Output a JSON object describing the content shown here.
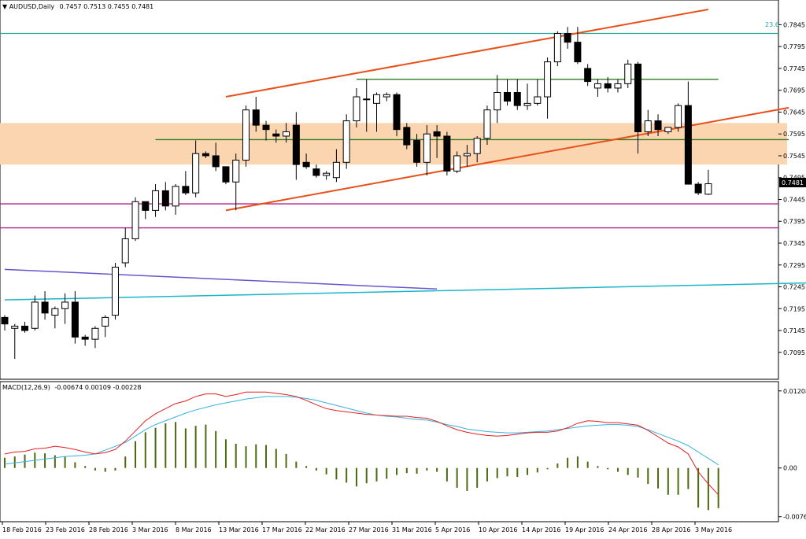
{
  "price_header": {
    "arrow": "▼",
    "symbol_tf": "AUDUSD,Daily",
    "ohlc": "0.7457 0.7513 0.7455 0.7481"
  },
  "macd_header": {
    "label": "MACD(12,26,9)",
    "values": "-0.00674 0.00109 -0.00228"
  },
  "fib_label": "23.6",
  "current_price": "0.7481",
  "colors": {
    "up_candle": "#ffffff",
    "down_candle": "#000000",
    "channel": "#e8501a",
    "zone": "#fbd5b0",
    "resistance": "#2e7d20",
    "support": "#b0208a",
    "fib": "#2aa59a",
    "purple_trend": "#6655cc",
    "cyan_trend": "#1ab5c8",
    "macd_hist": "#4a6a10",
    "macd_main": "#e02020",
    "macd_signal": "#39b0e0"
  },
  "chart_data": [
    {
      "type": "candlestick",
      "ylim": [
        0.7055,
        0.788
      ],
      "y_ticks": [
        "0.7845",
        "0.7795",
        "0.7745",
        "0.7695",
        "0.7645",
        "0.7595",
        "0.7545",
        "0.7495",
        "0.7445",
        "0.7395",
        "0.7345",
        "0.7295",
        "0.7245",
        "0.7195",
        "0.7145",
        "0.7095"
      ],
      "x_ticks": [
        "18 Feb 2016",
        "23 Feb 2016",
        "28 Feb 2016",
        "3 Mar 2016",
        "8 Mar 2016",
        "13 Mar 2016",
        "17 Mar 2016",
        "22 Mar 2016",
        "27 Mar 2016",
        "31 Mar 2016",
        "5 Apr 2016",
        "10 Apr 2016",
        "14 Apr 2016",
        "19 Apr 2016",
        "24 Apr 2016",
        "28 Apr 2016",
        "3 May 2016"
      ],
      "candles": [
        {
          "o": 0.7175,
          "h": 0.718,
          "l": 0.7145,
          "c": 0.716
        },
        {
          "o": 0.715,
          "h": 0.716,
          "l": 0.708,
          "c": 0.7155
        },
        {
          "o": 0.7155,
          "h": 0.7165,
          "l": 0.714,
          "c": 0.7145
        },
        {
          "o": 0.715,
          "h": 0.7225,
          "l": 0.7145,
          "c": 0.721
        },
        {
          "o": 0.721,
          "h": 0.7235,
          "l": 0.717,
          "c": 0.7185
        },
        {
          "o": 0.718,
          "h": 0.72,
          "l": 0.715,
          "c": 0.7195
        },
        {
          "o": 0.7195,
          "h": 0.723,
          "l": 0.716,
          "c": 0.721
        },
        {
          "o": 0.721,
          "h": 0.7235,
          "l": 0.7115,
          "c": 0.713
        },
        {
          "o": 0.713,
          "h": 0.7135,
          "l": 0.711,
          "c": 0.7125
        },
        {
          "o": 0.7125,
          "h": 0.7155,
          "l": 0.7105,
          "c": 0.715
        },
        {
          "o": 0.7155,
          "h": 0.718,
          "l": 0.713,
          "c": 0.7175
        },
        {
          "o": 0.718,
          "h": 0.73,
          "l": 0.717,
          "c": 0.729
        },
        {
          "o": 0.73,
          "h": 0.738,
          "l": 0.729,
          "c": 0.7355
        },
        {
          "o": 0.7355,
          "h": 0.745,
          "l": 0.735,
          "c": 0.744
        },
        {
          "o": 0.744,
          "h": 0.744,
          "l": 0.74,
          "c": 0.742
        },
        {
          "o": 0.742,
          "h": 0.748,
          "l": 0.7405,
          "c": 0.7465
        },
        {
          "o": 0.7465,
          "h": 0.7485,
          "l": 0.742,
          "c": 0.743
        },
        {
          "o": 0.743,
          "h": 0.748,
          "l": 0.741,
          "c": 0.7475
        },
        {
          "o": 0.7475,
          "h": 0.751,
          "l": 0.7455,
          "c": 0.746
        },
        {
          "o": 0.746,
          "h": 0.758,
          "l": 0.745,
          "c": 0.755
        },
        {
          "o": 0.755,
          "h": 0.7555,
          "l": 0.754,
          "c": 0.7545
        },
        {
          "o": 0.7545,
          "h": 0.7575,
          "l": 0.751,
          "c": 0.752
        },
        {
          "o": 0.752,
          "h": 0.752,
          "l": 0.748,
          "c": 0.7485
        },
        {
          "o": 0.7485,
          "h": 0.755,
          "l": 0.742,
          "c": 0.7535
        },
        {
          "o": 0.7535,
          "h": 0.766,
          "l": 0.752,
          "c": 0.765
        },
        {
          "o": 0.765,
          "h": 0.768,
          "l": 0.76,
          "c": 0.7615
        },
        {
          "o": 0.7615,
          "h": 0.7625,
          "l": 0.758,
          "c": 0.7605
        },
        {
          "o": 0.7595,
          "h": 0.7605,
          "l": 0.7575,
          "c": 0.759
        },
        {
          "o": 0.759,
          "h": 0.762,
          "l": 0.7575,
          "c": 0.76
        },
        {
          "o": 0.7615,
          "h": 0.7645,
          "l": 0.749,
          "c": 0.7525
        },
        {
          "o": 0.753,
          "h": 0.755,
          "l": 0.7515,
          "c": 0.752
        },
        {
          "o": 0.7515,
          "h": 0.7525,
          "l": 0.7495,
          "c": 0.75
        },
        {
          "o": 0.75,
          "h": 0.751,
          "l": 0.749,
          "c": 0.7505
        },
        {
          "o": 0.7495,
          "h": 0.756,
          "l": 0.7485,
          "c": 0.753
        },
        {
          "o": 0.753,
          "h": 0.764,
          "l": 0.7515,
          "c": 0.7625
        },
        {
          "o": 0.7625,
          "h": 0.77,
          "l": 0.761,
          "c": 0.768
        },
        {
          "o": 0.7675,
          "h": 0.772,
          "l": 0.76,
          "c": 0.7675
        },
        {
          "o": 0.7665,
          "h": 0.769,
          "l": 0.76,
          "c": 0.7685
        },
        {
          "o": 0.768,
          "h": 0.769,
          "l": 0.767,
          "c": 0.7685
        },
        {
          "o": 0.7685,
          "h": 0.769,
          "l": 0.759,
          "c": 0.7605
        },
        {
          "o": 0.761,
          "h": 0.762,
          "l": 0.756,
          "c": 0.757
        },
        {
          "o": 0.758,
          "h": 0.7595,
          "l": 0.752,
          "c": 0.753
        },
        {
          "o": 0.753,
          "h": 0.7615,
          "l": 0.75,
          "c": 0.7595
        },
        {
          "o": 0.76,
          "h": 0.7615,
          "l": 0.754,
          "c": 0.759
        },
        {
          "o": 0.759,
          "h": 0.76,
          "l": 0.75,
          "c": 0.751
        },
        {
          "o": 0.751,
          "h": 0.7555,
          "l": 0.7505,
          "c": 0.7545
        },
        {
          "o": 0.7545,
          "h": 0.757,
          "l": 0.752,
          "c": 0.755
        },
        {
          "o": 0.755,
          "h": 0.759,
          "l": 0.753,
          "c": 0.7585
        },
        {
          "o": 0.7585,
          "h": 0.766,
          "l": 0.757,
          "c": 0.765
        },
        {
          "o": 0.765,
          "h": 0.773,
          "l": 0.762,
          "c": 0.769
        },
        {
          "o": 0.769,
          "h": 0.772,
          "l": 0.766,
          "c": 0.767
        },
        {
          "o": 0.769,
          "h": 0.772,
          "l": 0.765,
          "c": 0.766
        },
        {
          "o": 0.766,
          "h": 0.771,
          "l": 0.765,
          "c": 0.7665
        },
        {
          "o": 0.7665,
          "h": 0.772,
          "l": 0.766,
          "c": 0.768
        },
        {
          "o": 0.768,
          "h": 0.777,
          "l": 0.763,
          "c": 0.776
        },
        {
          "o": 0.776,
          "h": 0.783,
          "l": 0.775,
          "c": 0.7825
        },
        {
          "o": 0.7825,
          "h": 0.784,
          "l": 0.779,
          "c": 0.7805
        },
        {
          "o": 0.7805,
          "h": 0.784,
          "l": 0.7755,
          "c": 0.776
        },
        {
          "o": 0.7745,
          "h": 0.7755,
          "l": 0.7705,
          "c": 0.7715
        },
        {
          "o": 0.77,
          "h": 0.772,
          "l": 0.768,
          "c": 0.771
        },
        {
          "o": 0.771,
          "h": 0.7725,
          "l": 0.769,
          "c": 0.77
        },
        {
          "o": 0.77,
          "h": 0.772,
          "l": 0.769,
          "c": 0.771
        },
        {
          "o": 0.771,
          "h": 0.7765,
          "l": 0.77,
          "c": 0.7755
        },
        {
          "o": 0.7755,
          "h": 0.776,
          "l": 0.755,
          "c": 0.76
        },
        {
          "o": 0.76,
          "h": 0.765,
          "l": 0.759,
          "c": 0.7625
        },
        {
          "o": 0.7625,
          "h": 0.764,
          "l": 0.759,
          "c": 0.7605
        },
        {
          "o": 0.76,
          "h": 0.761,
          "l": 0.7595,
          "c": 0.761
        },
        {
          "o": 0.761,
          "h": 0.7665,
          "l": 0.76,
          "c": 0.766
        },
        {
          "o": 0.766,
          "h": 0.7715,
          "l": 0.748,
          "c": 0.748
        },
        {
          "o": 0.748,
          "h": 0.7485,
          "l": 0.7455,
          "c": 0.746
        },
        {
          "o": 0.7457,
          "h": 0.7513,
          "l": 0.7455,
          "c": 0.7481
        }
      ],
      "levels": {
        "fib_23_6": 0.7825,
        "zone": [
          0.7525,
          0.762
        ],
        "resistance_upper": 0.772,
        "resistance_lower": 0.7582,
        "support_upper": 0.7435,
        "support_lower": 0.738
      },
      "trendlines": {
        "channel_upper": [
          [
            22,
            0.768
          ],
          [
            70,
            0.788
          ]
        ],
        "channel_lower": [
          [
            22,
            0.742
          ],
          [
            78,
            0.7655
          ]
        ],
        "green_upper": [
          35,
          71
        ],
        "green_lower": [
          15,
          78
        ],
        "zone_range": [
          0,
          78
        ],
        "purple": [
          [
            0,
            0.7285
          ],
          [
            43,
            0.724
          ]
        ],
        "cyan": [
          [
            0,
            0.7215
          ],
          [
            82,
            0.7255
          ]
        ]
      }
    },
    {
      "type": "macd",
      "ylim": [
        -0.0078,
        0.0123
      ],
      "y_ticks": [
        "0.01208",
        "0.00",
        "-0.00764"
      ],
      "histogram": [
        0.0016,
        0.0018,
        0.0021,
        0.0024,
        0.0023,
        0.002,
        0.0018,
        0.0009,
        0.0003,
        -0.0004,
        -0.0006,
        -0.0004,
        0.0018,
        0.0042,
        0.0056,
        0.0063,
        0.007,
        0.0072,
        0.0062,
        0.0066,
        0.0068,
        0.0058,
        0.0045,
        0.0038,
        0.0034,
        0.0037,
        0.0036,
        0.003,
        0.0022,
        0.001,
        0.0003,
        -0.0004,
        -0.001,
        -0.0018,
        -0.0023,
        -0.0029,
        -0.0024,
        -0.0021,
        -0.0017,
        -0.0011,
        -0.0008,
        -0.0009,
        -0.0004,
        -0.0006,
        -0.0021,
        -0.0031,
        -0.0036,
        -0.0031,
        -0.0021,
        -0.0016,
        -0.0013,
        -0.0014,
        -0.0011,
        -0.0007,
        -0.0002,
        0.0007,
        0.0016,
        0.0018,
        0.001,
        0.0003,
        -0.0002,
        -0.0006,
        -0.0011,
        -0.0015,
        -0.0025,
        -0.0032,
        -0.0042,
        -0.0042,
        -0.0033,
        -0.0062,
        -0.0066,
        -0.0063
      ],
      "macd": [
        0.0022,
        0.0025,
        0.0026,
        0.003,
        0.0031,
        0.0034,
        0.0032,
        0.0029,
        0.0025,
        0.0022,
        0.0024,
        0.0029,
        0.0042,
        0.0058,
        0.0074,
        0.0085,
        0.0093,
        0.0101,
        0.0105,
        0.0112,
        0.0116,
        0.0116,
        0.0112,
        0.0115,
        0.0119,
        0.0119,
        0.0119,
        0.0117,
        0.0115,
        0.0112,
        0.0106,
        0.0099,
        0.0093,
        0.009,
        0.0088,
        0.0086,
        0.0084,
        0.0083,
        0.0082,
        0.0081,
        0.0081,
        0.0079,
        0.0078,
        0.0073,
        0.0066,
        0.006,
        0.0056,
        0.0053,
        0.0051,
        0.005,
        0.0051,
        0.0053,
        0.0055,
        0.0056,
        0.0056,
        0.0058,
        0.0063,
        0.007,
        0.0074,
        0.0073,
        0.0071,
        0.0071,
        0.0069,
        0.0067,
        0.0059,
        0.0049,
        0.0039,
        0.0033,
        0.0022,
        -0.0006,
        -0.0025,
        -0.0042
      ],
      "signal": [
        0.0006,
        0.0008,
        0.001,
        0.0012,
        0.0014,
        0.0016,
        0.0018,
        0.0019,
        0.002,
        0.0022,
        0.0028,
        0.0034,
        0.004,
        0.005,
        0.006,
        0.0068,
        0.0074,
        0.008,
        0.0086,
        0.0091,
        0.0095,
        0.0099,
        0.0102,
        0.0105,
        0.0108,
        0.011,
        0.0112,
        0.0112,
        0.0112,
        0.0111,
        0.0109,
        0.0106,
        0.0102,
        0.0098,
        0.0094,
        0.009,
        0.0086,
        0.0083,
        0.0081,
        0.008,
        0.0078,
        0.0076,
        0.0075,
        0.0072,
        0.0068,
        0.0065,
        0.0061,
        0.0059,
        0.0057,
        0.0056,
        0.0055,
        0.0055,
        0.0056,
        0.0057,
        0.0058,
        0.006,
        0.0062,
        0.0064,
        0.0066,
        0.0067,
        0.0068,
        0.0068,
        0.0067,
        0.0065,
        0.006,
        0.0054,
        0.0048,
        0.0042,
        0.0035,
        0.0025,
        0.0015,
        0.0005
      ]
    }
  ]
}
